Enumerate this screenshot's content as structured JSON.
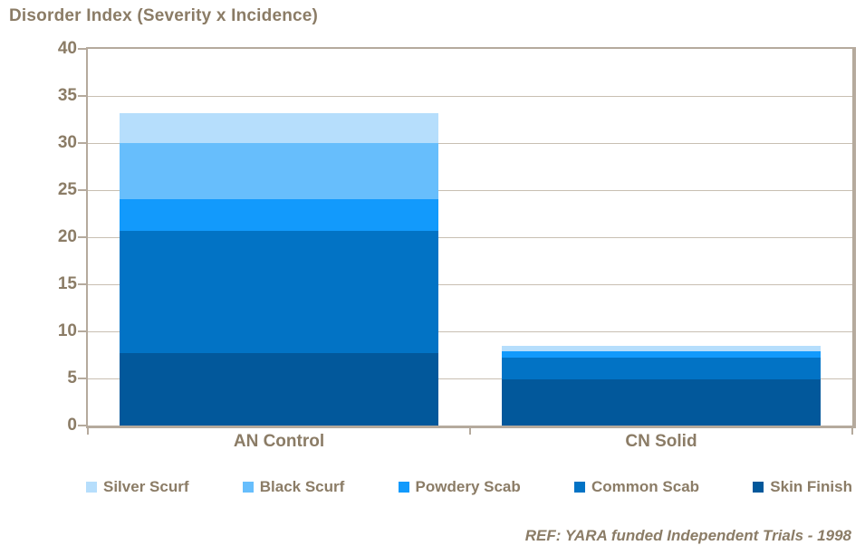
{
  "title": "Disorder Index (Severity x Incidence)",
  "footer": "REF: YARA funded Independent Trials - 1998",
  "colors": {
    "text": "#8b7c66",
    "gridline": "#c8bfb2",
    "frame": "#b5aa9d",
    "background": "#ffffff",
    "silver_scurf": "#b6defc",
    "black_scurf": "#67befc",
    "powdery_scab": "#129afc",
    "common_scab": "#0273c5",
    "skin_finish": "#02589b"
  },
  "chart_data": {
    "type": "bar",
    "stacked": true,
    "title": "Disorder Index (Severity x Incidence)",
    "annotation": "REF: YARA funded Independent Trials - 1998",
    "categories": [
      "AN Control",
      "CN Solid"
    ],
    "series": [
      {
        "name": "Skin Finish",
        "color": "#02589b",
        "values": [
          7.7,
          4.9
        ]
      },
      {
        "name": "Common Scab",
        "color": "#0273c5",
        "values": [
          13.0,
          2.3
        ]
      },
      {
        "name": "Powdery Scab",
        "color": "#129afc",
        "values": [
          3.3,
          0.7
        ]
      },
      {
        "name": "Black Scurf",
        "color": "#67befc",
        "values": [
          6.0,
          0.0
        ]
      },
      {
        "name": "Silver Scurf",
        "color": "#b6defc",
        "values": [
          3.2,
          0.6
        ]
      }
    ],
    "totals": [
      33.2,
      8.5
    ],
    "legend": [
      {
        "label": "Silver Scurf",
        "color": "#b6defc"
      },
      {
        "label": "Black Scurf",
        "color": "#67befc"
      },
      {
        "label": "Powdery Scab",
        "color": "#129afc"
      },
      {
        "label": "Common Scab",
        "color": "#0273c5"
      },
      {
        "label": "Skin Finish",
        "color": "#02589b"
      }
    ],
    "legend_position": "bottom",
    "xlabel": "",
    "ylabel": "",
    "ylim": [
      0,
      40
    ],
    "yticks": [
      0,
      5,
      10,
      15,
      20,
      25,
      30,
      35,
      40
    ],
    "grid": true
  }
}
